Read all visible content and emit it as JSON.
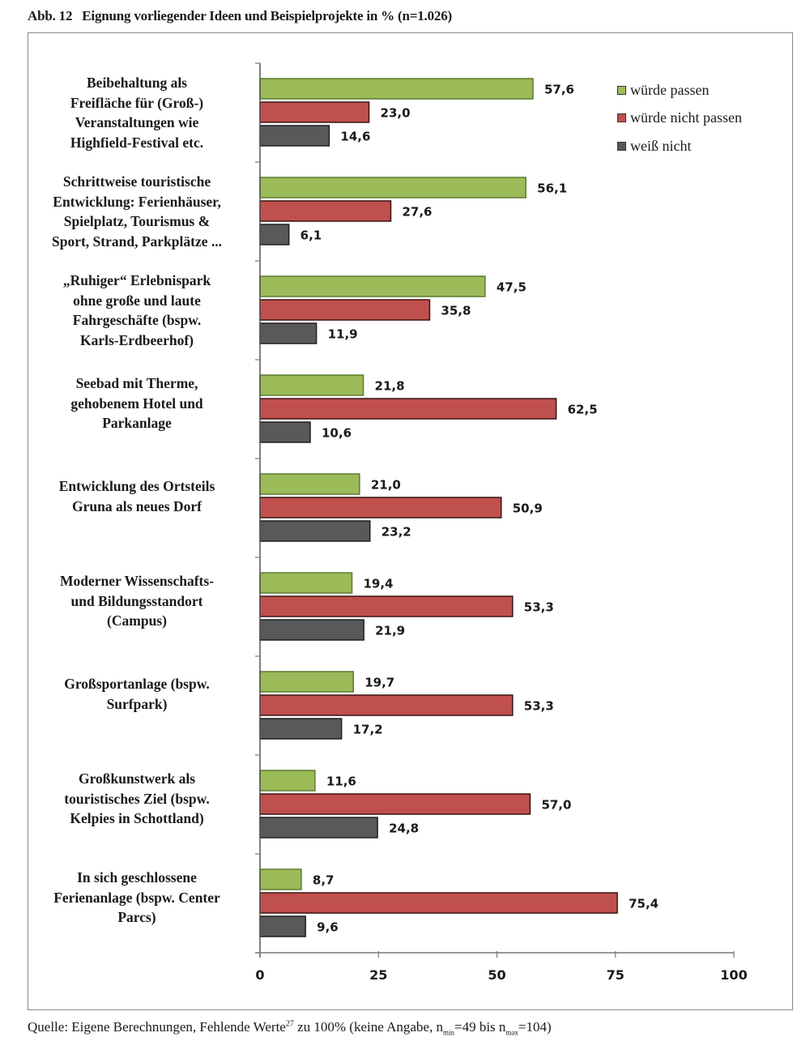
{
  "figure": {
    "number": "Abb. 12",
    "title": "Eignung vorliegender Ideen und Beispielprojekte in % (n=1.026)"
  },
  "source": {
    "prefix": "Quelle: Eigene Berechnungen, Fehlende Werte",
    "footnote": "27",
    "middle": " zu 100% (keine Angabe, n",
    "min_sub": "min",
    "min_value": "=49 bis n",
    "max_sub": "max",
    "max_value": "=104)"
  },
  "colors": {
    "passt": "#9BBB59",
    "passt_nicht": "#C0504D",
    "weiss_nicht": "#595959"
  },
  "chart_data": {
    "type": "bar",
    "orientation": "horizontal",
    "title": "Eignung vorliegender Ideen und Beispielprojekte in % (n=1.026)",
    "xlabel": "",
    "ylabel": "",
    "xlim": [
      0,
      100
    ],
    "xticks": [
      "0",
      "25",
      "50",
      "75",
      "100"
    ],
    "xtick_values": [
      0,
      25,
      50,
      75,
      100
    ],
    "grid": false,
    "legend_position": "top-right",
    "categories": [
      [
        "Beibehaltung als",
        "Freifläche für (Groß-)",
        "Veranstaltungen wie",
        "Highfield-Festival etc."
      ],
      [
        "Schrittweise touristische",
        "Entwicklung: Ferienhäuser,",
        "Spielplatz, Tourismus &",
        "Sport, Strand, Parkplätze ..."
      ],
      [
        "„Ruhiger“ Erlebnispark",
        "ohne große und laute",
        "Fahrgeschäfte (bspw.",
        "Karls-Erdbeerhof)"
      ],
      [
        "Seebad mit Therme,",
        "gehobenem Hotel und",
        "Parkanlage"
      ],
      [
        "Entwicklung des Ortsteils",
        "Gruna als neues Dorf"
      ],
      [
        "Moderner Wissenschafts-",
        "und Bildungsstandort",
        "(Campus)"
      ],
      [
        "Großsportanlage (bspw.",
        "Surfpark)"
      ],
      [
        "Großkunstwerk als",
        "touristisches Ziel (bspw.",
        "Kelpies in Schottland)"
      ],
      [
        "In sich geschlossene",
        "Ferienanlage (bspw. Center",
        "Parcs)"
      ]
    ],
    "series": [
      {
        "name": "würde passen",
        "color_key": "passt",
        "values": [
          57.6,
          56.1,
          47.5,
          21.8,
          21.0,
          19.4,
          19.7,
          11.6,
          8.7
        ],
        "labels": [
          "57,6",
          "56,1",
          "47,5",
          "21,8",
          "21,0",
          "19,4",
          "19,7",
          "11,6",
          "8,7"
        ]
      },
      {
        "name": "würde nicht passen",
        "color_key": "passt_nicht",
        "values": [
          23.0,
          27.6,
          35.8,
          62.5,
          50.9,
          53.3,
          53.3,
          57.0,
          75.4
        ],
        "labels": [
          "23,0",
          "27,6",
          "35,8",
          "62,5",
          "50,9",
          "53,3",
          "53,3",
          "57,0",
          "75,4"
        ]
      },
      {
        "name": "weiß nicht",
        "color_key": "weiss_nicht",
        "values": [
          14.6,
          6.1,
          11.9,
          10.6,
          23.2,
          21.9,
          17.2,
          24.8,
          9.6
        ],
        "labels": [
          "14,6",
          "6,1",
          "11,9",
          "10,6",
          "23,2",
          "21,9",
          "17,2",
          "24,8",
          "9,6"
        ]
      }
    ]
  }
}
